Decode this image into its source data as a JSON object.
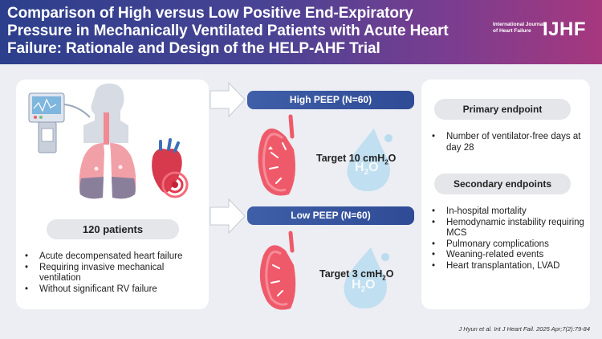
{
  "header": {
    "title": "Comparison of High versus Low Positive End-Expiratory Pressure in Mechanically Ventilated Patients with Acute Heart Failure: Rationale and Design of the HELP-AHF Trial",
    "journal_name": "International Journal of Heart Failure",
    "journal_logo": "IJHF"
  },
  "population": {
    "count_label": "120 patients",
    "criteria": [
      "Acute decompensated heart failure",
      "Requiring invasive mechanical ventilation",
      "Without significant RV failure"
    ]
  },
  "arms": {
    "high": {
      "label": "High PEEP (N=60)",
      "target_prefix": "Target 10 cmH",
      "target_sub": "2",
      "target_suffix": "O"
    },
    "low": {
      "label": "Low PEEP (N=60)",
      "target_prefix": "Target 3 cmH",
      "target_sub": "2",
      "target_suffix": "O"
    }
  },
  "water_drop_text": {
    "h": "H",
    "sub": "2",
    "o": "O"
  },
  "endpoints": {
    "primary_title": "Primary endpoint",
    "primary": [
      "Number of ventilator-free days at day 28"
    ],
    "secondary_title": "Secondary endpoints",
    "secondary": [
      "In-hospital mortality",
      "Hemodynamic instability requiring MCS",
      "Pulmonary complications",
      "Weaning-related events",
      "Heart transplantation, LVAD"
    ]
  },
  "citation": "J Hyun et al. Int J Heart Fail. 2025 Apr;7(2):79-84",
  "colors": {
    "header_start": "#2c3f8c",
    "header_end": "#a6387e",
    "arm_bar": "#2f4b95",
    "lung": "#ef5a6a",
    "drop": "#b9dcef"
  }
}
